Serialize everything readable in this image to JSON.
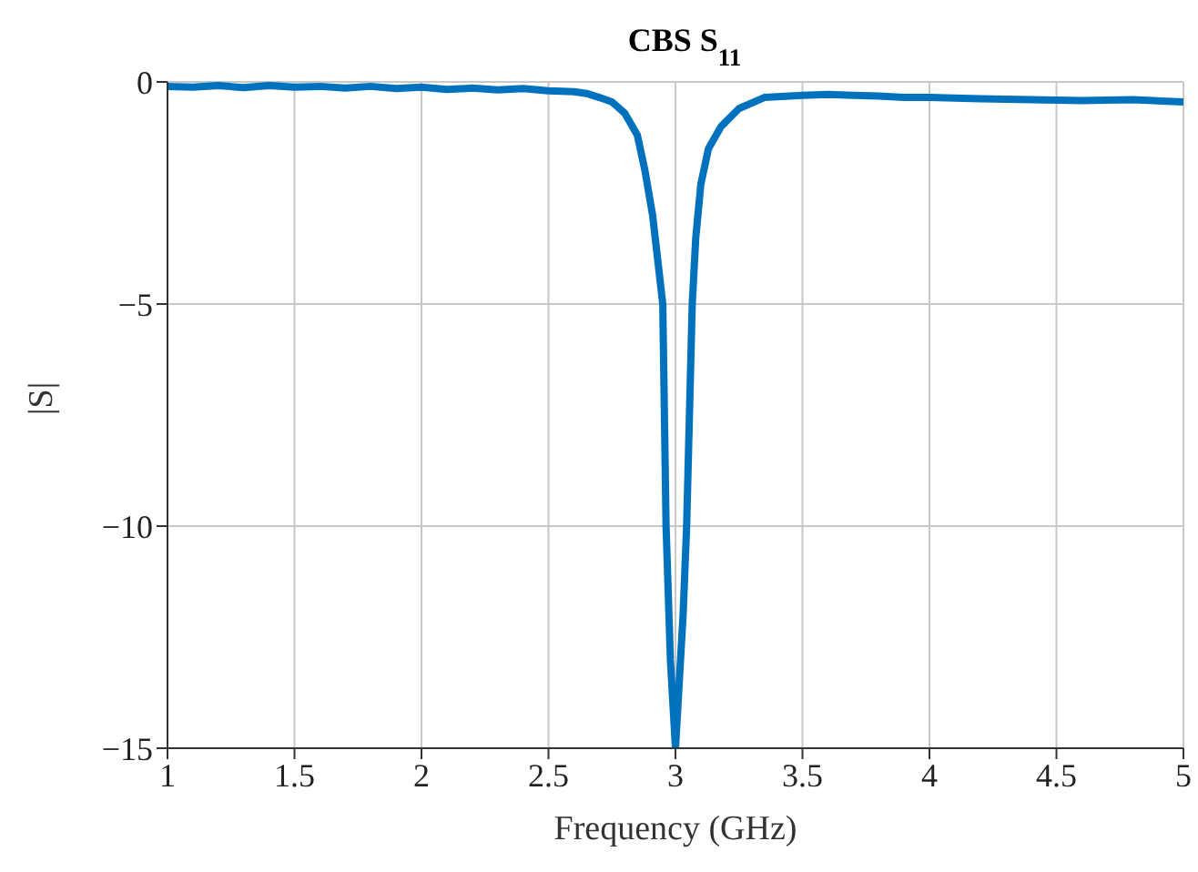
{
  "chart_data": {
    "type": "line",
    "title": "CBS S$_{11}$",
    "xlabel": "Frequency (GHz)",
    "ylabel": "|S|",
    "x": [
      1,
      1.1,
      1.2,
      1.3,
      1.4,
      1.5,
      1.6,
      1.7,
      1.8,
      1.9,
      2,
      2.1,
      2.2,
      2.3,
      2.4,
      2.5,
      2.6,
      2.65,
      2.7,
      2.75,
      2.8,
      2.85,
      2.88,
      2.91,
      2.93,
      2.95,
      2.963,
      2.98,
      3,
      3.01,
      3.03,
      3.044,
      3.066,
      3.08,
      3.1,
      3.13,
      3.18,
      3.25,
      3.35,
      3.5,
      3.6,
      3.7,
      3.8,
      3.9,
      4,
      4.2,
      4.4,
      4.6,
      4.8,
      5
    ],
    "series": [
      {
        "color": "#0072bd",
        "values": [
          -0.1,
          -0.12,
          -0.08,
          -0.13,
          -0.08,
          -0.12,
          -0.1,
          -0.14,
          -0.1,
          -0.15,
          -0.12,
          -0.17,
          -0.14,
          -0.18,
          -0.15,
          -0.2,
          -0.22,
          -0.26,
          -0.35,
          -0.45,
          -0.7,
          -1.2,
          -2,
          -3,
          -4,
          -5,
          -10,
          -13,
          -15,
          -14,
          -12,
          -10,
          -5,
          -3.5,
          -2.3,
          -1.5,
          -1.0,
          -0.6,
          -0.35,
          -0.3,
          -0.28,
          -0.3,
          -0.32,
          -0.35,
          -0.35,
          -0.38,
          -0.4,
          -0.42,
          -0.4,
          -0.45
        ]
      }
    ],
    "xlim": [
      1,
      5
    ],
    "xticks": [
      1,
      1.5,
      2,
      2.5,
      3,
      3.5,
      4,
      4.5,
      5
    ],
    "ylim": [
      -15,
      0
    ],
    "yticks": [
      -15,
      -10,
      -5,
      0
    ],
    "grid": true,
    "marker": "none",
    "line_style": "solid"
  }
}
